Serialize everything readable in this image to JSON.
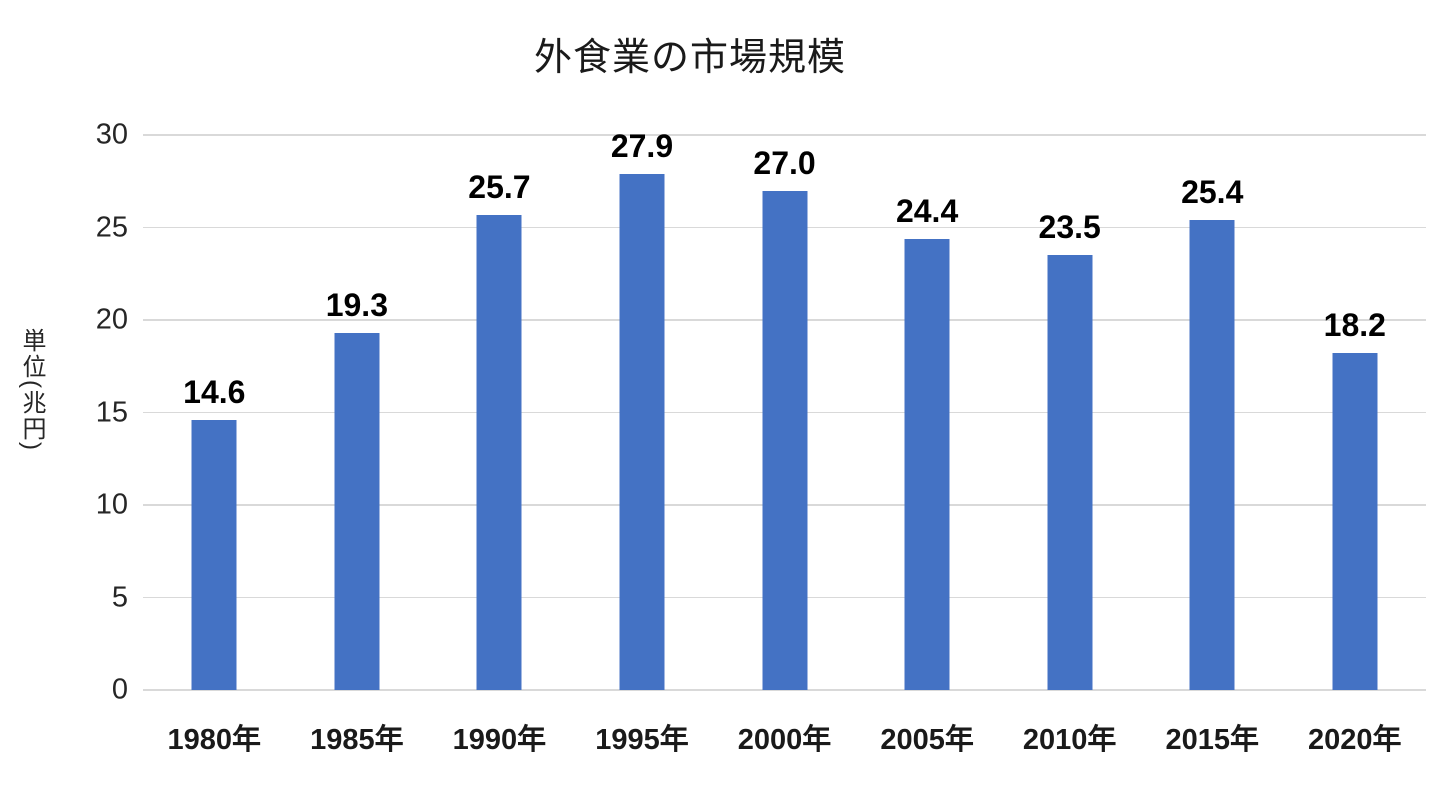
{
  "chart_data": {
    "type": "bar",
    "title": "外食業の市場規模",
    "xlabel": "",
    "ylabel": "単位(兆円)",
    "categories": [
      "1980年",
      "1985年",
      "1990年",
      "1995年",
      "2000年",
      "2005年",
      "2010年",
      "2015年",
      "2020年"
    ],
    "values": [
      14.6,
      19.3,
      25.7,
      27.9,
      27.0,
      24.4,
      23.5,
      25.4,
      18.2
    ],
    "data_labels": [
      "14.6",
      "19.3",
      "25.7",
      "27.9",
      "27.0",
      "24.4",
      "23.5",
      "25.4",
      "18.2"
    ],
    "yticks": [
      0,
      5,
      10,
      15,
      20,
      25,
      30
    ],
    "ylim": [
      0,
      30
    ],
    "grid": true,
    "legend_position": "none",
    "bar_color": "#4472C4",
    "gridline_color": "#D9D9D9",
    "background_color": "#FFFFFF"
  }
}
